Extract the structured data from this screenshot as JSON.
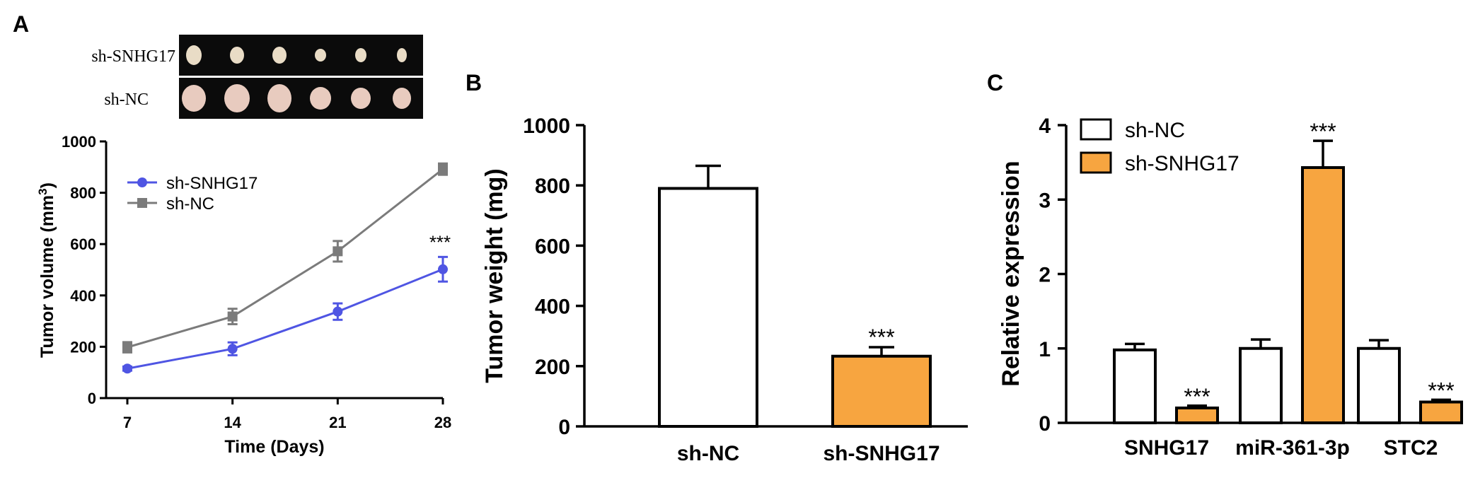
{
  "panels": {
    "a": {
      "letter": "A"
    },
    "b": {
      "letter": "B"
    },
    "c": {
      "letter": "C"
    }
  },
  "photo": {
    "row_labels": [
      "sh-SNHG17",
      "sh-NC"
    ]
  },
  "colors": {
    "blue": "#4f55e3",
    "gray": "#7b7b7b",
    "orange": "#f7a540",
    "black": "#000000",
    "white": "#ffffff"
  },
  "chart_data": [
    {
      "id": "panelA",
      "type": "line",
      "title": "",
      "xlabel": "Time (Days)",
      "ylabel_main": "Tumor volume (mm",
      "ylabel_sup": "3",
      "ylabel_close": ")",
      "x": [
        7,
        14,
        21,
        28
      ],
      "xticks": [
        "7",
        "14",
        "21",
        "28"
      ],
      "yticks": [
        "0",
        "200",
        "400",
        "600",
        "800",
        "1000"
      ],
      "ylim": [
        0,
        1000
      ],
      "series": [
        {
          "name": "sh-SNHG17",
          "color": "#4f55e3",
          "marker": "circle",
          "values": [
            115,
            192,
            337,
            502
          ],
          "errors": [
            8,
            25,
            32,
            48
          ]
        },
        {
          "name": "sh-NC",
          "color": "#7b7b7b",
          "marker": "square",
          "values": [
            198,
            318,
            572,
            892
          ],
          "errors": [
            20,
            30,
            40,
            22
          ]
        }
      ],
      "annotations": [
        {
          "text": "***",
          "x": 28
        }
      ],
      "legend": "top-left",
      "grid": false
    },
    {
      "id": "panelB",
      "type": "bar",
      "title": "",
      "xlabel": "",
      "ylabel": "Tumor weight (mg)",
      "categories": [
        "sh-NC",
        "sh-SNHG17"
      ],
      "values": [
        790,
        233
      ],
      "errors": [
        75,
        30
      ],
      "bar_colors": [
        "#ffffff",
        "#f7a540"
      ],
      "yticks": [
        "0",
        "200",
        "400",
        "600",
        "800",
        "1000"
      ],
      "ylim": [
        0,
        1000
      ],
      "annotations": [
        {
          "text": "***",
          "category": "sh-SNHG17"
        }
      ],
      "grid": false
    },
    {
      "id": "panelC",
      "type": "bar",
      "title": "",
      "xlabel": "",
      "ylabel": "Relative expression",
      "categories": [
        "SNHG17",
        "miR-361-3p",
        "STC2"
      ],
      "series": [
        {
          "name": "sh-NC",
          "color": "#ffffff",
          "values": [
            0.98,
            1.0,
            1.0
          ],
          "errors": [
            0.08,
            0.12,
            0.11
          ]
        },
        {
          "name": "sh-SNHG17",
          "color": "#f7a540",
          "values": [
            0.2,
            3.43,
            0.28
          ],
          "errors": [
            0.03,
            0.36,
            0.03
          ]
        }
      ],
      "yticks": [
        "0",
        "1",
        "2",
        "3",
        "4"
      ],
      "ylim": [
        0,
        4
      ],
      "annotations": [
        "***",
        "***",
        "***"
      ],
      "legend": "top-left",
      "grid": false
    }
  ]
}
